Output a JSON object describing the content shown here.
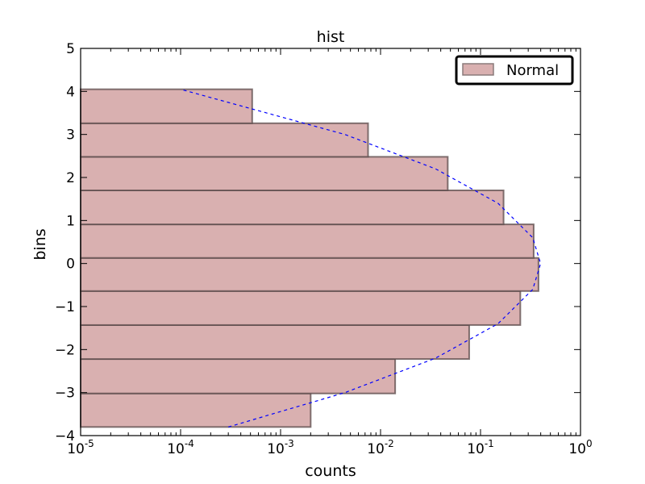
{
  "chart_data": {
    "type": "bar",
    "orientation": "horizontal",
    "title": "hist",
    "xlabel": "counts",
    "ylabel": "bins",
    "xscale": "log",
    "xlim": [
      1e-05,
      1
    ],
    "ylim": [
      -4,
      5
    ],
    "x_ticks": [
      {
        "base": "10",
        "exp": "-5",
        "value": 1e-05
      },
      {
        "base": "10",
        "exp": "-4",
        "value": 0.0001
      },
      {
        "base": "10",
        "exp": "-3",
        "value": 0.001
      },
      {
        "base": "10",
        "exp": "-2",
        "value": 0.01
      },
      {
        "base": "10",
        "exp": "-1",
        "value": 0.1
      },
      {
        "base": "10",
        "exp": "0",
        "value": 1
      }
    ],
    "y_ticks": [
      {
        "label": "−4",
        "value": -4
      },
      {
        "label": "−3",
        "value": -3
      },
      {
        "label": "−2",
        "value": -2
      },
      {
        "label": "−1",
        "value": -1
      },
      {
        "label": "0",
        "value": 0
      },
      {
        "label": "1",
        "value": 1
      },
      {
        "label": "2",
        "value": 2
      },
      {
        "label": "3",
        "value": 3
      },
      {
        "label": "4",
        "value": 4
      },
      {
        "label": "5",
        "value": 5
      }
    ],
    "bins": [
      {
        "low": -3.8,
        "high": -3.02,
        "count": 0.002
      },
      {
        "low": -3.02,
        "high": -2.22,
        "count": 0.014
      },
      {
        "low": -2.22,
        "high": -1.43,
        "count": 0.077
      },
      {
        "low": -1.43,
        "high": -0.64,
        "count": 0.25
      },
      {
        "low": -0.64,
        "high": 0.13,
        "count": 0.38
      },
      {
        "low": 0.13,
        "high": 0.91,
        "count": 0.34
      },
      {
        "low": 0.91,
        "high": 1.7,
        "count": 0.17
      },
      {
        "low": 1.7,
        "high": 2.48,
        "count": 0.047
      },
      {
        "low": 2.48,
        "high": 3.26,
        "count": 0.0075
      },
      {
        "low": 3.26,
        "high": 4.05,
        "count": 0.00052
      }
    ],
    "series": [
      {
        "name": "Normal",
        "kind": "histogram"
      },
      {
        "kind": "pdf-curve"
      }
    ],
    "curve": {
      "y": [
        -3.8,
        -3.0,
        -2.2,
        -1.4,
        -0.6,
        0.0,
        0.6,
        1.4,
        2.2,
        3.0,
        4.05
      ],
      "x": [
        0.0003,
        0.0044,
        0.0355,
        0.1497,
        0.3332,
        0.3989,
        0.3332,
        0.1497,
        0.0355,
        0.0044,
        0.0001
      ]
    },
    "legend_position": "top-right",
    "grid": false,
    "colors": {
      "bar_fill": "#d9b0b0",
      "bar_edge": "#5a4a4a",
      "curve": "#0000ff",
      "axes": "#000000",
      "background": "#ffffff"
    }
  }
}
